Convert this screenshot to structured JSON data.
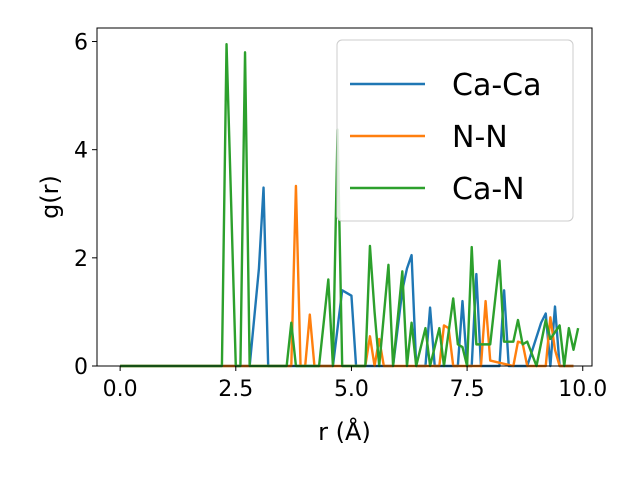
{
  "chart_data": {
    "type": "line",
    "xlabel": "r (Å)",
    "ylabel": "g(r)",
    "xlim": [
      -0.5,
      10.2
    ],
    "ylim": [
      0,
      6.25
    ],
    "xticks": [
      0.0,
      2.5,
      5.0,
      7.5,
      10.0
    ],
    "xtick_labels": [
      "0.0",
      "2.5",
      "5.0",
      "7.5",
      "10.0"
    ],
    "yticks": [
      0,
      2,
      4,
      6
    ],
    "ytick_labels": [
      "0",
      "2",
      "4",
      "6"
    ],
    "grid": false,
    "legend": "top-right",
    "series": [
      {
        "name": "Ca-Ca",
        "color": "#1f77b4",
        "points": [
          [
            0.0,
            0
          ],
          [
            2.8,
            0
          ],
          [
            3.0,
            1.8
          ],
          [
            3.1,
            3.3
          ],
          [
            3.2,
            0
          ],
          [
            4.6,
            0
          ],
          [
            4.8,
            1.4
          ],
          [
            5.0,
            1.3
          ],
          [
            5.1,
            0
          ],
          [
            5.9,
            0
          ],
          [
            6.1,
            1.4
          ],
          [
            6.2,
            1.8
          ],
          [
            6.3,
            2.05
          ],
          [
            6.4,
            0
          ],
          [
            6.6,
            0
          ],
          [
            6.7,
            1.08
          ],
          [
            6.8,
            0
          ],
          [
            7.3,
            0
          ],
          [
            7.4,
            1.2
          ],
          [
            7.5,
            0
          ],
          [
            7.6,
            0
          ],
          [
            7.7,
            1.7
          ],
          [
            7.8,
            0
          ],
          [
            8.2,
            0
          ],
          [
            8.3,
            1.4
          ],
          [
            8.4,
            0
          ],
          [
            8.8,
            0
          ],
          [
            9.1,
            0.8
          ],
          [
            9.2,
            0.97
          ],
          [
            9.3,
            0
          ],
          [
            9.4,
            1.1
          ],
          [
            9.5,
            0
          ],
          [
            9.8,
            0
          ]
        ]
      },
      {
        "name": "N-N",
        "color": "#ff7f0e",
        "points": [
          [
            0.0,
            0
          ],
          [
            3.7,
            0
          ],
          [
            3.8,
            3.33
          ],
          [
            3.9,
            0
          ],
          [
            4.0,
            0
          ],
          [
            4.1,
            0.95
          ],
          [
            4.2,
            0
          ],
          [
            5.3,
            0
          ],
          [
            5.4,
            0.55
          ],
          [
            5.5,
            0
          ],
          [
            5.6,
            0.5
          ],
          [
            5.7,
            0
          ],
          [
            6.9,
            0
          ],
          [
            7.0,
            0.75
          ],
          [
            7.1,
            0.7
          ],
          [
            7.2,
            0
          ],
          [
            7.8,
            0
          ],
          [
            7.9,
            1.2
          ],
          [
            8.0,
            0.1
          ],
          [
            8.5,
            0
          ],
          [
            8.6,
            0.45
          ],
          [
            8.7,
            0.42
          ],
          [
            8.8,
            0
          ],
          [
            9.2,
            0
          ],
          [
            9.3,
            0.9
          ],
          [
            9.4,
            0.3
          ],
          [
            9.5,
            0
          ],
          [
            9.8,
            0
          ]
        ]
      },
      {
        "name": "Ca-N",
        "color": "#2ca02c",
        "points": [
          [
            0.0,
            0
          ],
          [
            2.2,
            0
          ],
          [
            2.3,
            5.95
          ],
          [
            2.4,
            3.0
          ],
          [
            2.5,
            0
          ],
          [
            2.6,
            0
          ],
          [
            2.7,
            5.8
          ],
          [
            2.8,
            0
          ],
          [
            3.6,
            0
          ],
          [
            3.7,
            0.8
          ],
          [
            3.8,
            0
          ],
          [
            4.3,
            0
          ],
          [
            4.5,
            1.6
          ],
          [
            4.6,
            0
          ],
          [
            4.7,
            4.37
          ],
          [
            4.8,
            0
          ],
          [
            5.3,
            0
          ],
          [
            5.4,
            2.22
          ],
          [
            5.5,
            1.0
          ],
          [
            5.6,
            0
          ],
          [
            5.8,
            1.87
          ],
          [
            5.9,
            0
          ],
          [
            6.1,
            1.75
          ],
          [
            6.2,
            0
          ],
          [
            6.3,
            0.8
          ],
          [
            6.4,
            0
          ],
          [
            6.6,
            0.7
          ],
          [
            6.7,
            0
          ],
          [
            6.9,
            0.7
          ],
          [
            7.0,
            0
          ],
          [
            7.2,
            1.25
          ],
          [
            7.3,
            0.4
          ],
          [
            7.4,
            0.35
          ],
          [
            7.5,
            0
          ],
          [
            7.6,
            2.2
          ],
          [
            7.7,
            0.4
          ],
          [
            8.0,
            0.4
          ],
          [
            8.2,
            1.95
          ],
          [
            8.3,
            0.45
          ],
          [
            8.5,
            0.45
          ],
          [
            8.6,
            0.85
          ],
          [
            8.7,
            0.4
          ],
          [
            8.8,
            0.45
          ],
          [
            9.0,
            0
          ],
          [
            9.2,
            0.85
          ],
          [
            9.3,
            0.5
          ],
          [
            9.5,
            0.75
          ],
          [
            9.6,
            0
          ],
          [
            9.7,
            0.7
          ],
          [
            9.8,
            0.3
          ],
          [
            9.9,
            0.7
          ]
        ]
      }
    ]
  }
}
